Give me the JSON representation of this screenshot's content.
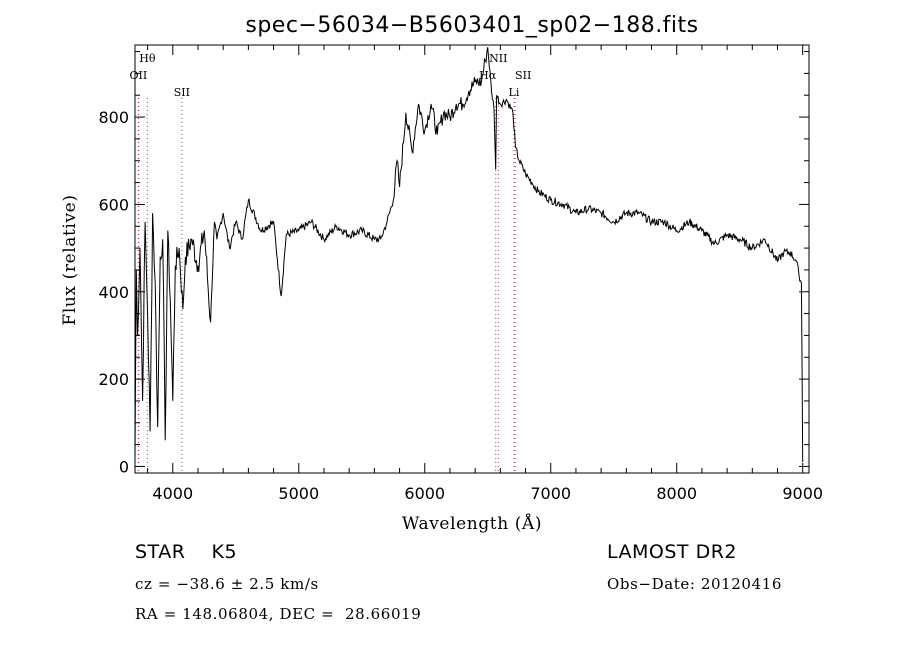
{
  "chart_data": {
    "type": "line",
    "title": "spec−56034−B5603401_sp02−188.fits",
    "xlabel": "Wavelength (Å)",
    "ylabel": "Flux (relative)",
    "xlim": [
      3700,
      9050
    ],
    "ylim": [
      -15,
      965
    ],
    "x_ticks": [
      4000,
      5000,
      6000,
      7000,
      8000,
      9000
    ],
    "y_ticks": [
      0,
      200,
      400,
      600,
      800
    ],
    "grid": false,
    "series": [
      {
        "x": [
          3700,
          3710,
          3720,
          3740,
          3760,
          3780,
          3800,
          3820,
          3840,
          3860,
          3880,
          3900,
          3920,
          3940,
          3960,
          3980,
          4000,
          4020,
          4050,
          4080,
          4100,
          4150,
          4200,
          4250,
          4300,
          4330,
          4350,
          4400,
          4450,
          4500,
          4550,
          4600,
          4700,
          4800,
          4860,
          4900,
          5000,
          5100,
          5200,
          5300,
          5400,
          5500,
          5600,
          5650,
          5700,
          5750,
          5780,
          5800,
          5850,
          5900,
          5950,
          6000,
          6050,
          6100,
          6150,
          6200,
          6250,
          6300,
          6350,
          6400,
          6450,
          6480,
          6500,
          6530,
          6550,
          6563,
          6570,
          6600,
          6650,
          6700,
          6720,
          6750,
          6800,
          6850,
          6900,
          6950,
          7000,
          7100,
          7200,
          7300,
          7400,
          7500,
          7600,
          7700,
          7800,
          7900,
          8000,
          8100,
          8200,
          8300,
          8400,
          8500,
          8600,
          8700,
          8800,
          8850,
          8900,
          8950,
          8970,
          8990,
          9000
        ],
        "y": [
          20,
          450,
          300,
          500,
          150,
          560,
          350,
          80,
          580,
          420,
          90,
          480,
          520,
          60,
          540,
          380,
          150,
          460,
          500,
          360,
          480,
          520,
          460,
          540,
          330,
          560,
          520,
          580,
          500,
          560,
          520,
          610,
          540,
          560,
          390,
          530,
          540,
          560,
          520,
          550,
          530,
          540,
          520,
          520,
          560,
          610,
          700,
          640,
          810,
          720,
          830,
          770,
          830,
          760,
          810,
          800,
          830,
          830,
          860,
          880,
          880,
          930,
          960,
          860,
          820,
          680,
          850,
          830,
          840,
          810,
          730,
          700,
          670,
          650,
          630,
          620,
          610,
          600,
          580,
          590,
          580,
          560,
          580,
          580,
          560,
          560,
          540,
          560,
          540,
          510,
          530,
          520,
          500,
          520,
          470,
          490,
          490,
          470,
          440,
          420,
          10
        ]
      }
    ],
    "line_markers": [
      {
        "label": "Hθ",
        "x": 3798
      },
      {
        "label": "OII",
        "x": 3727
      },
      {
        "label": "OII",
        "x": 3729
      },
      {
        "label": "SII",
        "x": 4072
      },
      {
        "label": "NII",
        "x": 6584
      },
      {
        "label": "Hα",
        "x": 6563
      },
      {
        "label": "SII",
        "x": 6718
      },
      {
        "label": "Li",
        "x": 6708
      }
    ]
  },
  "info": {
    "class_line": "STAR    K5",
    "survey": "LAMOST DR2",
    "cz_line": "cz = −38.6 ± 2.5 km/s",
    "obs_date": "Obs−Date: 20120416",
    "radec_line": "RA = 148.06804, DEC =  28.66019"
  }
}
